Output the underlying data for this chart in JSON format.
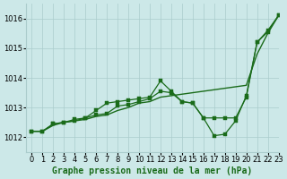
{
  "title": "Graphe pression niveau de la mer (hPa)",
  "bg_color": "#cce8e8",
  "grid_color": "#aacccc",
  "line_color": "#1a6b1a",
  "marker_color": "#1a6b1a",
  "xlim": [
    -0.5,
    23
  ],
  "ylim": [
    1011.5,
    1016.5
  ],
  "yticks": [
    1012,
    1013,
    1014,
    1015,
    1016
  ],
  "xticks": [
    0,
    1,
    2,
    3,
    4,
    5,
    6,
    7,
    8,
    9,
    10,
    11,
    12,
    13,
    14,
    15,
    16,
    17,
    18,
    19,
    20,
    21,
    22,
    23
  ],
  "series": [
    {
      "x": [
        0,
        1,
        2,
        3,
        4,
        5,
        6,
        7,
        8,
        9,
        10,
        11,
        12,
        13,
        14,
        15,
        16,
        17,
        18,
        19,
        20,
        21,
        22,
        23
      ],
      "y": [
        1012.2,
        1012.2,
        1012.4,
        1012.5,
        1012.55,
        1012.6,
        1012.7,
        1012.75,
        1012.9,
        1013.0,
        1013.15,
        1013.2,
        1013.35,
        1013.4,
        1013.45,
        1013.5,
        1013.55,
        1013.6,
        1013.65,
        1013.7,
        1013.75,
        1014.8,
        1015.5,
        1016.1
      ],
      "markers": false,
      "lw": 1.0
    },
    {
      "x": [
        0,
        1,
        2,
        3,
        4,
        5,
        6,
        7,
        8,
        9,
        10,
        11,
        12,
        13,
        14,
        15,
        16,
        17,
        18,
        19,
        20,
        21,
        22,
        23
      ],
      "y": [
        1012.2,
        1012.2,
        1012.45,
        1012.5,
        1012.55,
        1012.65,
        1012.9,
        1013.15,
        1013.2,
        1013.25,
        1013.3,
        1013.35,
        1013.9,
        1013.55,
        1013.2,
        1013.15,
        1012.65,
        1012.05,
        1012.1,
        1012.55,
        1013.4,
        1015.2,
        1015.6,
        1016.1
      ],
      "markers": true,
      "lw": 0.9
    },
    {
      "x": [
        0,
        1,
        2,
        3,
        4,
        5,
        6,
        7,
        8,
        9,
        10,
        11,
        12,
        13,
        14,
        15,
        16,
        17,
        18,
        19,
        20,
        21,
        22,
        23
      ],
      "y": [
        1012.2,
        1012.2,
        1012.45,
        1012.5,
        1012.6,
        1012.65,
        1012.75,
        1012.8,
        1013.05,
        1013.1,
        1013.2,
        1013.3,
        1013.55,
        1013.5,
        1013.2,
        1013.15,
        1012.65,
        1012.65,
        1012.65,
        1012.65,
        1013.35,
        1015.2,
        1015.55,
        1016.1
      ],
      "markers": true,
      "lw": 0.9
    }
  ],
  "title_fontsize": 7,
  "tick_fontsize": 6
}
